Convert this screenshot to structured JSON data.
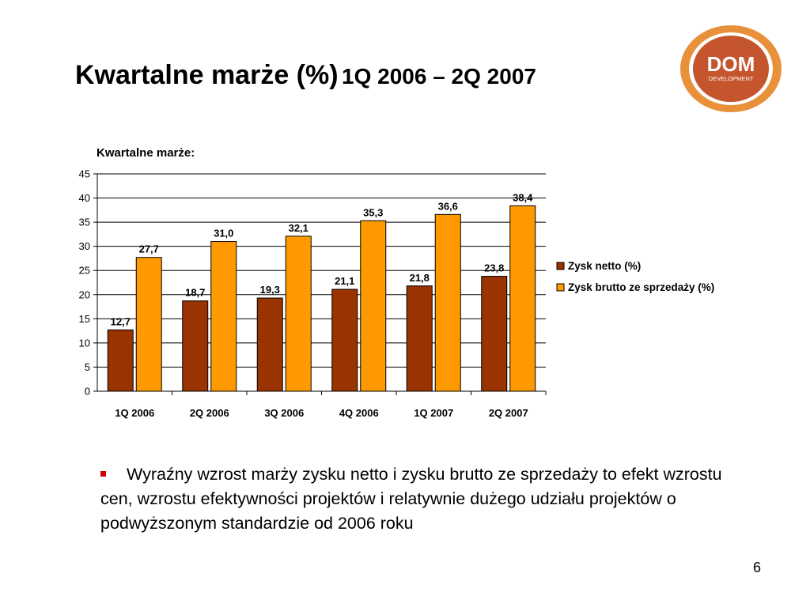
{
  "slide": {
    "title_main": "Kwartalne marże (%)",
    "title_sub": "1Q 2006 – 2Q 2007",
    "bullet_text": "Wyraźny wzrost marży zysku netto i zysku brutto ze sprzedaży to efekt wzrostu cen, wzrostu efektywności projektów i  relatywnie dużego udziału projektów o podwyższonym standardzie od 2006 roku",
    "page_number": "6",
    "logo": {
      "line1": "DOM",
      "line2": "DEVELOPMENT"
    },
    "colors": {
      "bullet": "#cc0000",
      "logo_ring": "#e8913a",
      "logo_inner": "#c4552c"
    }
  },
  "chart_data": {
    "type": "bar",
    "title": "Kwartalne marże:",
    "categories": [
      "1Q 2006",
      "2Q 2006",
      "3Q 2006",
      "4Q 2006",
      "1Q 2007",
      "2Q 2007"
    ],
    "series": [
      {
        "name": "Zysk netto (%)",
        "values": [
          12.7,
          18.7,
          19.3,
          21.1,
          21.8,
          23.8
        ],
        "labels": [
          "12,7",
          "18,7",
          "19,3",
          "21,1",
          "21,8",
          "23,8"
        ],
        "color": "#993300"
      },
      {
        "name": "Zysk brutto ze sprzedaży (%)",
        "values": [
          27.7,
          31.0,
          32.1,
          35.3,
          36.6,
          38.4
        ],
        "labels": [
          "27,7",
          "31,0",
          "32,1",
          "35,3",
          "36,6",
          "38,4"
        ],
        "color": "#ff9900"
      }
    ],
    "ylim": [
      0,
      45
    ],
    "yticks": [
      0,
      5,
      10,
      15,
      20,
      25,
      30,
      35,
      40,
      45
    ],
    "grid": true,
    "legend": "right"
  }
}
